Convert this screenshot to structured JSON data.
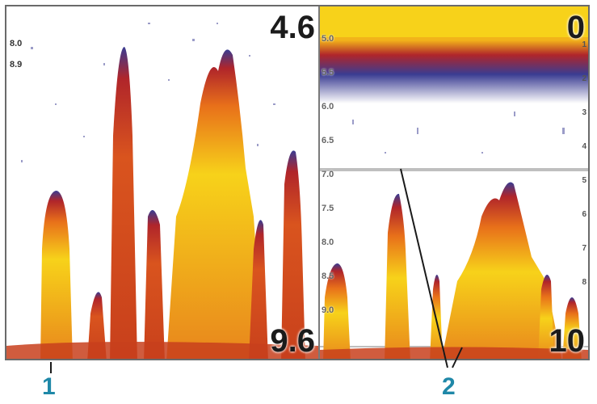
{
  "left_pane": {
    "top_depth": "4.6",
    "bottom_depth": "9.6",
    "overlay": [
      "8.0",
      "8.9"
    ]
  },
  "right_pane": {
    "top_depth": "0",
    "bottom_depth": "10",
    "scale_ticks": [
      "5.0",
      "5.5",
      "6.0",
      "6.5",
      "7.0",
      "7.5",
      "8.0",
      "8.5",
      "9.0"
    ],
    "mini_scale": [
      "1",
      "2",
      "3",
      "4",
      "5",
      "6",
      "7",
      "8"
    ]
  },
  "callouts": {
    "one": "1",
    "two": "2"
  },
  "colors": {
    "strong": "#f7d21a",
    "mid": "#e8701a",
    "weak": "#b0252a",
    "faint": "#3a3c92"
  }
}
